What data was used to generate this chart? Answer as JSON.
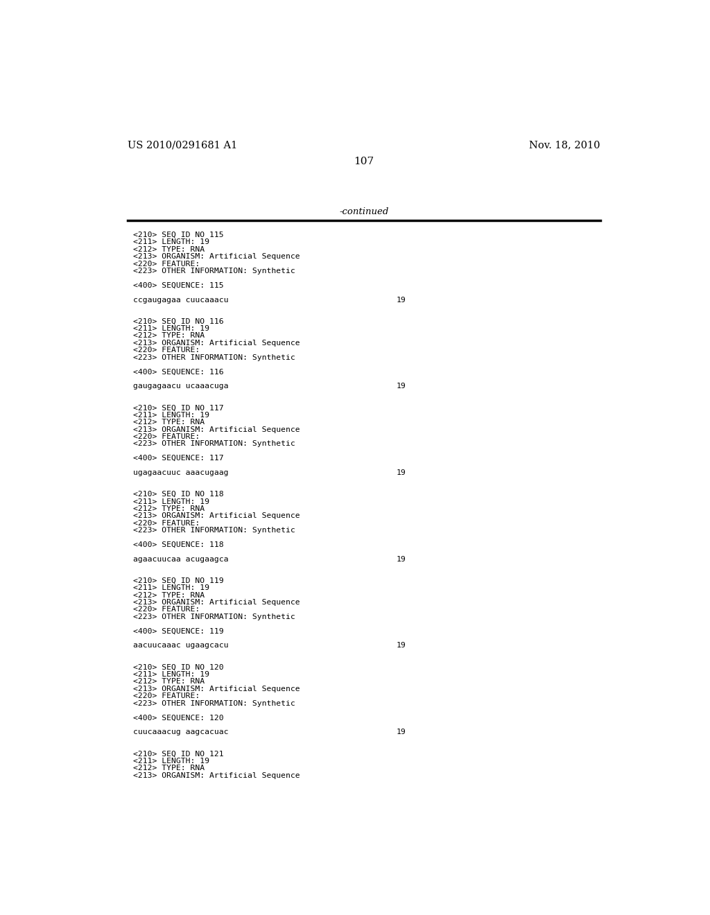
{
  "header_left": "US 2010/0291681 A1",
  "header_right": "Nov. 18, 2010",
  "page_number": "107",
  "continued_label": "-continued",
  "background_color": "#ffffff",
  "text_color": "#000000",
  "font_size_header": 10.5,
  "font_size_body": 8.2,
  "font_size_page": 11,
  "font_size_continued": 9.5,
  "entries": [
    {
      "seq_id": "115",
      "length": "19",
      "type": "RNA",
      "organism": "Artificial Sequence",
      "feature": true,
      "other_info": "Synthetic",
      "sequence_num": "115",
      "sequence": "ccgaugagaa cuucaaacu",
      "seq_length_val": "19"
    },
    {
      "seq_id": "116",
      "length": "19",
      "type": "RNA",
      "organism": "Artificial Sequence",
      "feature": true,
      "other_info": "Synthetic",
      "sequence_num": "116",
      "sequence": "gaugagaacu ucaaacuga",
      "seq_length_val": "19"
    },
    {
      "seq_id": "117",
      "length": "19",
      "type": "RNA",
      "organism": "Artificial Sequence",
      "feature": true,
      "other_info": "Synthetic",
      "sequence_num": "117",
      "sequence": "ugagaacuuc aaacugaag",
      "seq_length_val": "19"
    },
    {
      "seq_id": "118",
      "length": "19",
      "type": "RNA",
      "organism": "Artificial Sequence",
      "feature": true,
      "other_info": "Synthetic",
      "sequence_num": "118",
      "sequence": "agaacuucaa acugaagca",
      "seq_length_val": "19"
    },
    {
      "seq_id": "119",
      "length": "19",
      "type": "RNA",
      "organism": "Artificial Sequence",
      "feature": true,
      "other_info": "Synthetic",
      "sequence_num": "119",
      "sequence": "aacuucaaac ugaagcacu",
      "seq_length_val": "19"
    },
    {
      "seq_id": "120",
      "length": "19",
      "type": "RNA",
      "organism": "Artificial Sequence",
      "feature": true,
      "other_info": "Synthetic",
      "sequence_num": "120",
      "sequence": "cuucaaacug aagcacuac",
      "seq_length_val": "19"
    },
    {
      "seq_id": "121",
      "length": "19",
      "type": "RNA",
      "organism": "Artificial Sequence",
      "feature": false,
      "other_info": null,
      "sequence_num": null,
      "sequence": null,
      "seq_length_val": null,
      "partial": true
    }
  ]
}
